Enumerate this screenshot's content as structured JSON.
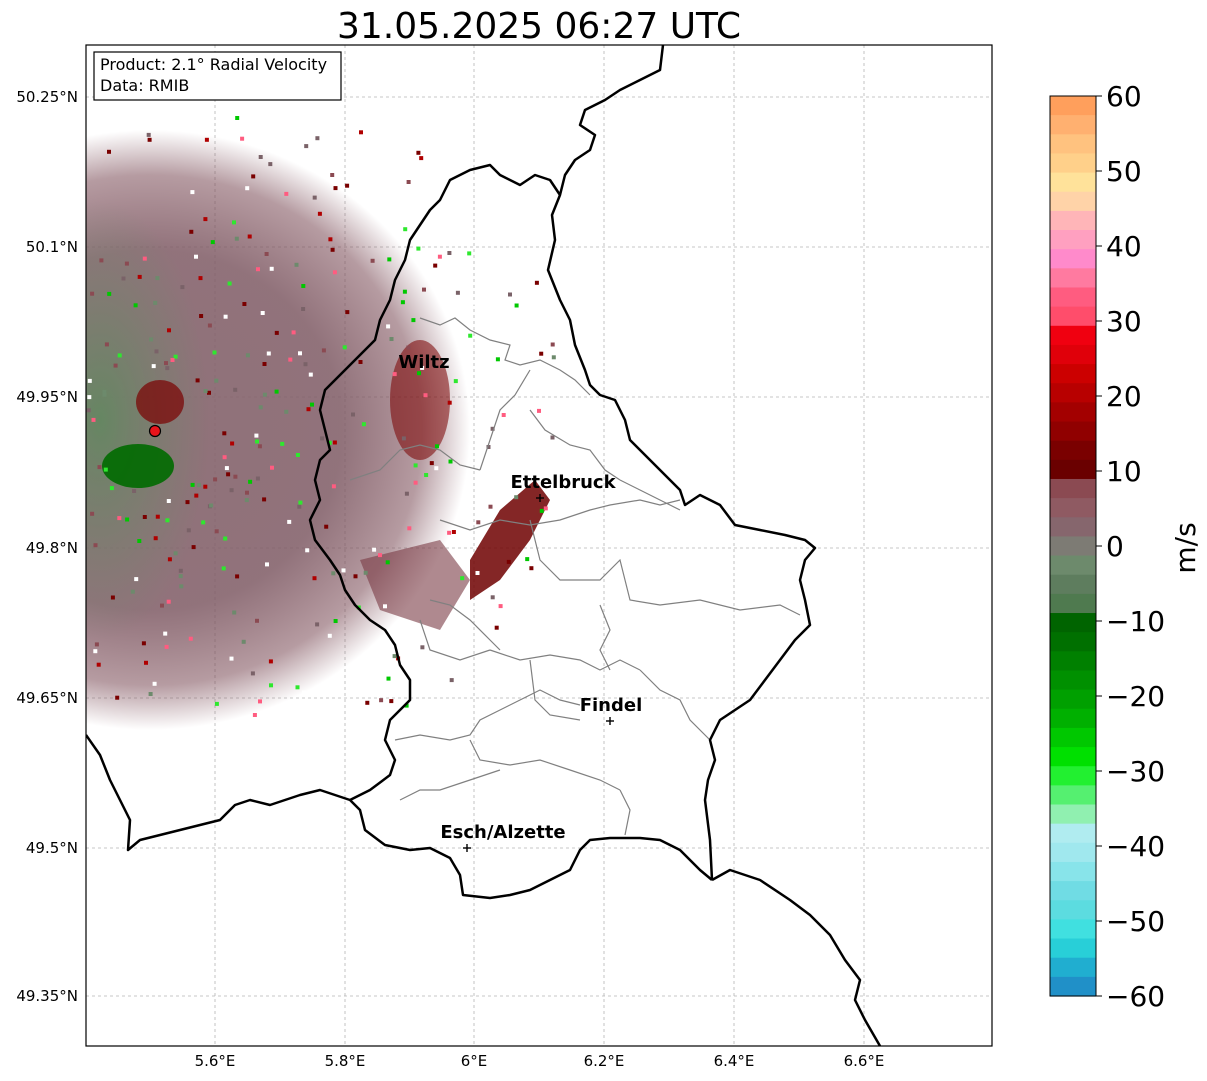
{
  "title": "31.05.2025 06:27 UTC",
  "info_box": {
    "product": "Product: 2.1° Radial Velocity",
    "data": "Data: RMIB"
  },
  "map": {
    "x_ticks": [
      "5.6°E",
      "5.8°E",
      "6°E",
      "6.2°E",
      "6.4°E",
      "6.6°E"
    ],
    "y_ticks": [
      "50.25°N",
      "50.1°N",
      "49.95°N",
      "49.8°N",
      "49.65°N",
      "49.5°N",
      "49.35°N"
    ],
    "radar_site_color": "#e8141b"
  },
  "places": [
    {
      "name": "Wiltz"
    },
    {
      "name": "Ettelbruck"
    },
    {
      "name": "Findel"
    },
    {
      "name": "Esch/Alzette"
    }
  ],
  "colorbar": {
    "label": "m/s",
    "min": -60,
    "max": 60,
    "ticks": [
      "60",
      "50",
      "40",
      "30",
      "20",
      "10",
      "0",
      "−10",
      "−20",
      "−30",
      "−40",
      "−50",
      "−60"
    ],
    "colors_top_to_bottom": [
      "#ff9f5c",
      "#ffb070",
      "#ffc27f",
      "#ffd08a",
      "#ffe29a",
      "#ffd3a8",
      "#ffb5b8",
      "#ffa0c0",
      "#ff8acb",
      "#ff7aa0",
      "#ff5c80",
      "#ff4d6b",
      "#f00010",
      "#e0000a",
      "#cc0000",
      "#b80000",
      "#a30000",
      "#900000",
      "#7a0000",
      "#6a0000",
      "#8b4a52",
      "#8f5a62",
      "#86666d",
      "#7d7b74",
      "#6d8a6c",
      "#5e7d5e",
      "#4f7a4f",
      "#006400",
      "#007000",
      "#008000",
      "#009000",
      "#00a000",
      "#00b000",
      "#00c800",
      "#00e000",
      "#22f030",
      "#55f070",
      "#90f0b0",
      "#b0ecf0",
      "#a0e8ee",
      "#88e4ea",
      "#70dce4",
      "#5cdce0",
      "#40e0e0",
      "#28cfd8",
      "#20aed0",
      "#2090c8"
    ]
  }
}
